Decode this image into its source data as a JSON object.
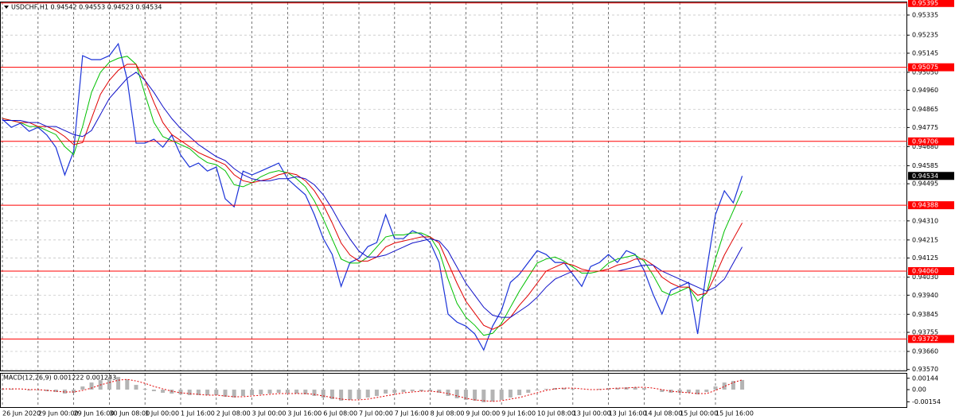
{
  "chart_data": [
    {
      "type": "line",
      "title": "USDCHF,H1  0.94542 0.94553 0.94523 0.94534",
      "categories": [
        "26 Jun 2020",
        null,
        null,
        null,
        "29 Jun 00:00",
        null,
        null,
        null,
        "29 Jun 16:00",
        null,
        null,
        null,
        "30 Jun 08:00",
        null,
        null,
        null,
        "1 Jul 00:00",
        null,
        null,
        null,
        "1 Jul 16:00",
        null,
        null,
        null,
        "2 Jul 08:00",
        null,
        null,
        null,
        "3 Jul 00:00",
        null,
        null,
        null,
        "3 Jul 16:00",
        null,
        null,
        null,
        "6 Jul 08:00",
        null,
        null,
        null,
        "7 Jul 00:00",
        null,
        null,
        null,
        "7 Jul 16:00",
        null,
        null,
        null,
        "8 Jul 08:00",
        null,
        null,
        null,
        "9 Jul 00:00",
        null,
        null,
        null,
        "9 Jul 16:00",
        null,
        null,
        null,
        "10 Jul 08:00",
        null,
        null,
        null,
        "13 Jul 00:00",
        null,
        null,
        null,
        "13 Jul 16:00",
        null,
        null,
        null,
        "14 Jul 08:00",
        null,
        null,
        null,
        "15 Jul 00:00",
        null,
        null,
        null,
        "15 Jul 16:00",
        null,
        null,
        null
      ],
      "series": [
        {
          "color": "#1a32d8",
          "values": [
            0.94816,
            0.94776,
            0.94796,
            0.94756,
            0.94776,
            0.94737,
            0.94677,
            0.94539,
            0.94657,
            0.95133,
            0.95113,
            0.95113,
            0.95133,
            0.95192,
            0.95014,
            0.94697,
            0.94697,
            0.94717,
            0.94677,
            0.94737,
            0.94638,
            0.94578,
            0.94598,
            0.94558,
            0.94578,
            0.9442,
            0.9438,
            0.94558,
            0.94539,
            0.94558,
            0.94578,
            0.94598,
            0.94519,
            0.94479,
            0.9444,
            0.94341,
            0.94222,
            0.94143,
            0.93984,
            0.94103,
            0.94123,
            0.94182,
            0.94202,
            0.94341,
            0.94222,
            0.94222,
            0.94261,
            0.94242,
            0.94202,
            0.94103,
            0.93846,
            0.93806,
            0.93786,
            0.93747,
            0.93667,
            0.93786,
            0.93865,
            0.94004,
            0.94044,
            0.94103,
            0.94162,
            0.94143,
            0.94103,
            0.94103,
            0.94044,
            0.93984,
            0.94083,
            0.94103,
            0.94143,
            0.94103,
            0.94162,
            0.94143,
            0.94063,
            0.93945,
            0.93846,
            0.93964,
            0.93984,
            0.94004,
            0.93747,
            0.94063,
            0.94341,
            0.9446,
            0.944,
            0.94534
          ]
        },
        {
          "color": "#00c000",
          "values": [
            0.9482,
            0.9481,
            0.948,
            0.9478,
            0.9478,
            0.9476,
            0.9474,
            0.9468,
            0.9464,
            0.9478,
            0.9495,
            0.9505,
            0.951,
            0.9512,
            0.9513,
            0.9509,
            0.9494,
            0.948,
            0.9473,
            0.9471,
            0.9469,
            0.9467,
            0.9463,
            0.946,
            0.9459,
            0.9456,
            0.9449,
            0.9448,
            0.945,
            0.9453,
            0.9455,
            0.9456,
            0.9455,
            0.9452,
            0.9448,
            0.9441,
            0.9432,
            0.9422,
            0.9412,
            0.941,
            0.941,
            0.9413,
            0.9418,
            0.9423,
            0.9424,
            0.9424,
            0.9425,
            0.9425,
            0.9423,
            0.9416,
            0.9402,
            0.939,
            0.9383,
            0.9379,
            0.9374,
            0.9375,
            0.938,
            0.9388,
            0.9396,
            0.9403,
            0.941,
            0.9412,
            0.9413,
            0.9411,
            0.9408,
            0.9405,
            0.9405,
            0.9406,
            0.941,
            0.9412,
            0.9413,
            0.9414,
            0.9411,
            0.9404,
            0.9396,
            0.9394,
            0.9396,
            0.9398,
            0.9391,
            0.9395,
            0.9412,
            0.9426,
            0.9436,
            0.9446
          ]
        },
        {
          "color": "#e00000",
          "values": [
            0.9482,
            0.9481,
            0.948,
            0.948,
            0.9478,
            0.9478,
            0.9476,
            0.9473,
            0.9469,
            0.947,
            0.9482,
            0.9494,
            0.9501,
            0.9506,
            0.9509,
            0.9509,
            0.9501,
            0.949,
            0.948,
            0.9474,
            0.9471,
            0.9468,
            0.9465,
            0.9463,
            0.9461,
            0.9459,
            0.9454,
            0.9451,
            0.945,
            0.9451,
            0.9452,
            0.9454,
            0.9455,
            0.9454,
            0.9451,
            0.9446,
            0.9439,
            0.943,
            0.942,
            0.9414,
            0.9411,
            0.9411,
            0.9413,
            0.9418,
            0.942,
            0.9421,
            0.9422,
            0.9423,
            0.9423,
            0.942,
            0.941,
            0.94,
            0.9391,
            0.9385,
            0.9379,
            0.9377,
            0.9379,
            0.9383,
            0.9389,
            0.9394,
            0.94,
            0.9406,
            0.9408,
            0.941,
            0.9409,
            0.9407,
            0.9406,
            0.9406,
            0.9407,
            0.9409,
            0.941,
            0.9412,
            0.9412,
            0.9409,
            0.9403,
            0.94,
            0.9398,
            0.9398,
            0.9394,
            0.9395,
            0.9404,
            0.9414,
            0.9422,
            0.943
          ]
        },
        {
          "color": "#1010c8",
          "values": [
            0.9481,
            0.9481,
            0.9481,
            0.948,
            0.948,
            0.9478,
            0.9478,
            0.9476,
            0.9474,
            0.9473,
            0.9476,
            0.9484,
            0.9492,
            0.9497,
            0.9502,
            0.9505,
            0.9501,
            0.9495,
            0.9488,
            0.9482,
            0.9477,
            0.9473,
            0.9469,
            0.9466,
            0.9463,
            0.9461,
            0.9457,
            0.9454,
            0.9452,
            0.9451,
            0.9451,
            0.9452,
            0.9452,
            0.9453,
            0.9452,
            0.9449,
            0.9444,
            0.9437,
            0.9429,
            0.9422,
            0.9416,
            0.9413,
            0.9413,
            0.9414,
            0.9416,
            0.9418,
            0.942,
            0.9421,
            0.9422,
            0.9421,
            0.9416,
            0.9408,
            0.94,
            0.9394,
            0.9388,
            0.9384,
            0.9383,
            0.9383,
            0.9386,
            0.9389,
            0.9393,
            0.9398,
            0.9402,
            0.9404,
            0.9406,
            0.9406,
            0.9406,
            0.9406,
            0.9406,
            0.9406,
            0.9407,
            0.9408,
            0.9409,
            0.9409,
            0.9406,
            0.9404,
            0.9402,
            0.94,
            0.9398,
            0.9396,
            0.9398,
            0.9402,
            0.941,
            0.9418
          ]
        }
      ],
      "ylim": [
        0.93565,
        0.9541
      ],
      "yticks": [
        0.95335,
        0.95235,
        0.95145,
        {
          "value": 0.9505,
          "label": "0.95050"
        },
        {
          "value": 0.9496,
          "label": "0.94960"
        },
        0.94865,
        0.94775,
        {
          "value": 0.9468,
          "label": "0.94680"
        },
        0.94585,
        0.94495,
        {
          "value": 0.9431,
          "label": "0.94310"
        },
        0.94215,
        0.94125,
        {
          "value": 0.9403,
          "label": "0.94030"
        },
        {
          "value": 0.9394,
          "label": "0.93940"
        },
        0.93845,
        0.93755,
        {
          "value": 0.9366,
          "label": "0.93660"
        },
        {
          "value": 0.9357,
          "label": "0.93570"
        }
      ],
      "levels": [
        0.95395,
        0.95075,
        0.94706,
        0.94388,
        {
          "value": 0.9406,
          "label": "0.94060"
        },
        0.93722
      ],
      "level_color": "#ff0000",
      "grid": true
    },
    {
      "type": "bar",
      "title": "MACD(12,26,9) 0.001222 0.001243",
      "series": [
        {
          "type": "bar",
          "color": "#b4b4b4",
          "values": [
            0.0001,
            0.0001,
            0,
            -0.0001,
            -0.0001,
            -0.0002,
            -0.0003,
            -0.0005,
            -0.0004,
            0.0004,
            0.0009,
            0.0012,
            0.0014,
            0.0016,
            0.0013,
            0.0006,
            0.0001,
            -0.0002,
            -0.0004,
            -0.0005,
            -0.0006,
            -0.0007,
            -0.0007,
            -0.0007,
            -0.0007,
            -0.0009,
            -0.001,
            -0.0008,
            -0.0007,
            -0.0006,
            -0.0005,
            -0.0004,
            -0.0004,
            -0.0005,
            -0.0006,
            -0.0008,
            -0.001,
            -0.0012,
            -0.0014,
            -0.0013,
            -0.0012,
            -0.001,
            -0.0008,
            -0.0005,
            -0.0004,
            -0.0003,
            -0.0002,
            -0.0002,
            -0.0002,
            -0.0004,
            -0.0008,
            -0.0011,
            -0.0013,
            -0.0014,
            -0.0016,
            -0.0015,
            -0.0013,
            -0.001,
            -0.0007,
            -0.0004,
            -0.0001,
            0.0001,
            0.0002,
            0.0002,
            0.0001,
            0,
            0,
            0.0001,
            0.0002,
            0.0002,
            0.0003,
            0.0003,
            0.0002,
            0,
            -0.0003,
            -0.0004,
            -0.0004,
            -0.0004,
            -0.0006,
            -0.0003,
            0.0004,
            0.0009,
            0.0011,
            0.001222
          ]
        },
        {
          "type": "line",
          "color": "#e00000",
          "values": [
            0.0001,
            0.0001,
            0.0001,
            0,
            0,
            -0.0001,
            -0.0002,
            -0.0003,
            -0.0003,
            -0.0001,
            0.0002,
            0.0006,
            0.0009,
            0.0012,
            0.0013,
            0.0011,
            0.0008,
            0.0004,
            0.0001,
            -0.0002,
            -0.0004,
            -0.0005,
            -0.0006,
            -0.0007,
            -0.0007,
            -0.0008,
            -0.0009,
            -0.0009,
            -0.0008,
            -0.0007,
            -0.0006,
            -0.0005,
            -0.0005,
            -0.0005,
            -0.0005,
            -0.0006,
            -0.0008,
            -0.001,
            -0.0012,
            -0.0013,
            -0.0013,
            -0.0012,
            -0.001,
            -0.0008,
            -0.0006,
            -0.0004,
            -0.0003,
            -0.0002,
            -0.0002,
            -0.0003,
            -0.0005,
            -0.0008,
            -0.0011,
            -0.0013,
            -0.0014,
            -0.0015,
            -0.0014,
            -0.0012,
            -0.001,
            -0.0007,
            -0.0004,
            -0.0001,
            0.0001,
            0.0002,
            0.0002,
            0.0001,
            0,
            0,
            0.0001,
            0.0002,
            0.0002,
            0.0003,
            0.0003,
            0.0002,
            0,
            -0.0002,
            -0.0003,
            -0.0004,
            -0.0005,
            -0.0005,
            -0.0001,
            0.0004,
            0.0009,
            0.001243
          ]
        }
      ],
      "ylim": [
        -0.00221,
        0.00202
      ],
      "yticks": [
        0.00144,
        {
          "value": 0,
          "label": "0.00"
        },
        -0.00154
      ]
    }
  ]
}
